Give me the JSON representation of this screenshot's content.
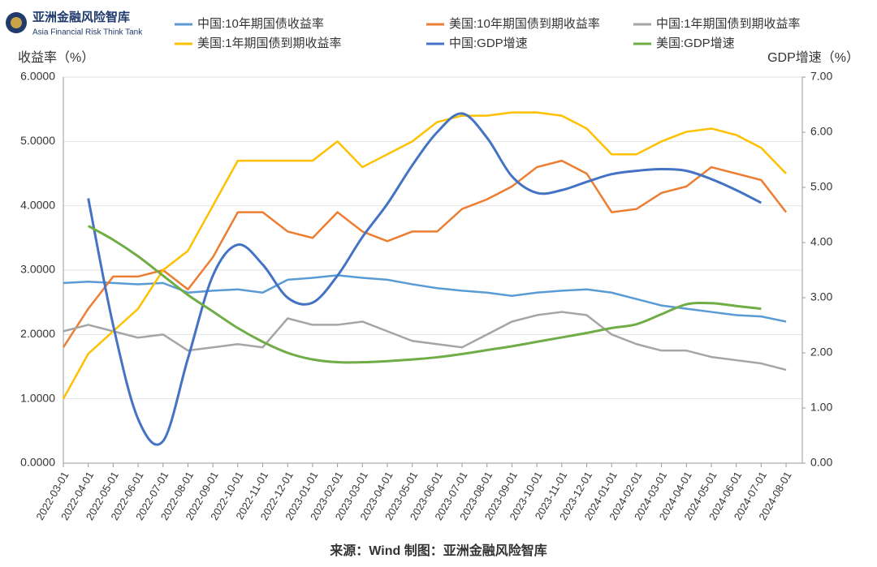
{
  "logo": {
    "name": "亚洲金融风险智库",
    "subtitle": "Asia Financial Risk Think Tank"
  },
  "source": "来源：Wind    制图：亚洲金融风险智库",
  "chart_data": {
    "type": "line",
    "ylabel": "收益率（%）",
    "y2label": "GDP增速（%）",
    "categories": [
      "2022-03-01",
      "2022-04-01",
      "2022-05-01",
      "2022-06-01",
      "2022-07-01",
      "2022-08-01",
      "2022-09-01",
      "2022-10-01",
      "2022-11-01",
      "2022-12-01",
      "2023-01-01",
      "2023-02-01",
      "2023-03-01",
      "2023-04-01",
      "2023-05-01",
      "2023-06-01",
      "2023-07-01",
      "2023-08-01",
      "2023-09-01",
      "2023-10-01",
      "2023-11-01",
      "2023-12-01",
      "2024-01-01",
      "2024-02-01",
      "2024-03-01",
      "2024-04-01",
      "2024-05-01",
      "2024-06-01",
      "2024-07-01",
      "2024-08-01"
    ],
    "ylim": [
      0,
      6
    ],
    "yticks": [
      {
        "value": 0,
        "label": "0.0000"
      },
      {
        "value": 1,
        "label": "1.0000"
      },
      {
        "value": 2,
        "label": "2.0000"
      },
      {
        "value": 3,
        "label": "3.0000"
      },
      {
        "value": 4,
        "label": "4.0000"
      },
      {
        "value": 5,
        "label": "5.0000"
      },
      {
        "value": 6,
        "label": "6.0000"
      }
    ],
    "y2lim": [
      0,
      7
    ],
    "y2ticks": [
      {
        "value": 0,
        "label": "0.00"
      },
      {
        "value": 1,
        "label": "1.00"
      },
      {
        "value": 2,
        "label": "2.00"
      },
      {
        "value": 3,
        "label": "3.00"
      },
      {
        "value": 4,
        "label": "4.00"
      },
      {
        "value": 5,
        "label": "5.00"
      },
      {
        "value": 6,
        "label": "6.00"
      },
      {
        "value": 7,
        "label": "7.00"
      }
    ],
    "grid": true,
    "series": [
      {
        "name": "中国:10年期国债收益率",
        "color": "#5b9bd5",
        "values": [
          2.8,
          2.82,
          2.8,
          2.78,
          2.8,
          2.65,
          2.68,
          2.7,
          2.65,
          2.85,
          2.88,
          2.92,
          2.88,
          2.85,
          2.78,
          2.72,
          2.68,
          2.65,
          2.6,
          2.65,
          2.68,
          2.7,
          2.65,
          2.55,
          2.45,
          2.4,
          2.35,
          2.3,
          2.28,
          2.2
        ]
      },
      {
        "name": "美国:10年期国债到期收益率",
        "color": "#ed7d31",
        "values": [
          1.8,
          2.4,
          2.9,
          2.9,
          3.0,
          2.7,
          3.2,
          3.9,
          3.9,
          3.6,
          3.5,
          3.9,
          3.6,
          3.45,
          3.6,
          3.6,
          3.95,
          4.1,
          4.3,
          4.6,
          4.7,
          4.5,
          3.9,
          3.95,
          4.2,
          4.3,
          4.6,
          4.5,
          4.4,
          3.9
        ]
      },
      {
        "name": "中国:1年期国债到期收益率",
        "color": "#a5a5a5",
        "values": [
          2.05,
          2.15,
          2.05,
          1.95,
          2.0,
          1.75,
          1.8,
          1.85,
          1.8,
          2.25,
          2.15,
          2.15,
          2.2,
          2.05,
          1.9,
          1.85,
          1.8,
          2.0,
          2.2,
          2.3,
          2.35,
          2.3,
          2.0,
          1.85,
          1.75,
          1.75,
          1.65,
          1.6,
          1.55,
          1.45
        ]
      },
      {
        "name": "美国:1年期国债到期收益率",
        "color": "#ffc000",
        "values": [
          1.0,
          1.7,
          2.05,
          2.4,
          3.0,
          3.3,
          4.0,
          4.7,
          4.7,
          4.7,
          4.7,
          5.0,
          4.6,
          4.8,
          5.0,
          5.3,
          5.4,
          5.4,
          5.45,
          5.45,
          5.4,
          5.2,
          4.8,
          4.8,
          5.0,
          5.15,
          5.2,
          5.1,
          4.9,
          4.5
        ]
      },
      {
        "name": "中国:GDP增速",
        "color": "#4472c4",
        "axis": "y2",
        "smooth": true,
        "values": [
          null,
          4.8,
          2.5,
          0.8,
          0.4,
          1.9,
          3.4,
          3.96,
          3.6,
          3.0,
          2.91,
          3.4,
          4.1,
          4.7,
          5.4,
          6.0,
          6.34,
          5.9,
          5.2,
          4.9,
          4.95,
          5.1,
          5.24,
          5.3,
          5.33,
          5.3,
          5.15,
          4.95,
          4.72,
          null
        ]
      },
      {
        "name": "美国:GDP增速",
        "color": "#70ad47",
        "axis": "y2",
        "smooth": true,
        "values": [
          null,
          4.3,
          4.05,
          3.75,
          3.4,
          3.05,
          2.75,
          2.45,
          2.2,
          2.0,
          1.88,
          1.83,
          1.83,
          1.85,
          1.88,
          1.92,
          1.98,
          2.05,
          2.12,
          2.2,
          2.28,
          2.36,
          2.45,
          2.52,
          2.7,
          2.88,
          2.9,
          2.85,
          2.8,
          null
        ]
      }
    ]
  }
}
